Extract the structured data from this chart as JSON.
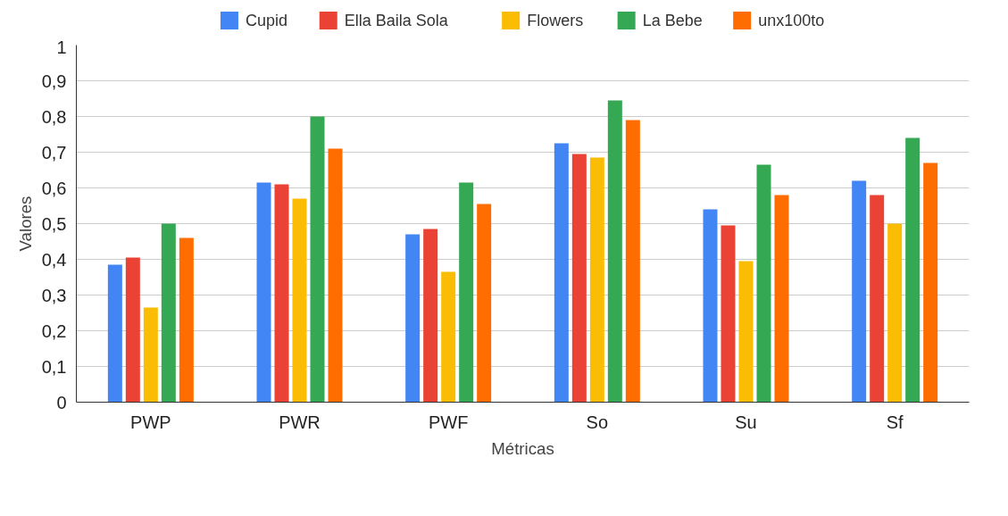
{
  "chart_data": {
    "type": "bar",
    "xlabel": "Métricas",
    "ylabel": "Valores",
    "categories": [
      "PWP",
      "PWR",
      "PWF",
      "So",
      "Su",
      "Sf"
    ],
    "series": [
      {
        "name": "Cupid",
        "color": "#4285f4",
        "values": [
          0.385,
          0.615,
          0.47,
          0.725,
          0.54,
          0.62
        ]
      },
      {
        "name": "Ella Baila Sola",
        "color": "#ea4335",
        "values": [
          0.405,
          0.61,
          0.485,
          0.695,
          0.495,
          0.58
        ]
      },
      {
        "name": "Flowers",
        "color": "#fbbc04",
        "values": [
          0.265,
          0.57,
          0.365,
          0.685,
          0.395,
          0.5
        ]
      },
      {
        "name": "La Bebe",
        "color": "#34a853",
        "values": [
          0.5,
          0.8,
          0.615,
          0.845,
          0.665,
          0.74
        ]
      },
      {
        "name": "unx100to",
        "color": "#ff6d01",
        "values": [
          0.46,
          0.71,
          0.555,
          0.79,
          0.58,
          0.67
        ]
      }
    ],
    "ylim": [
      0,
      1
    ],
    "yticks": [
      0,
      {
        "value": 0.1,
        "label": "0,1"
      },
      {
        "value": 0.2,
        "label": "0,2"
      },
      {
        "value": 0.3,
        "label": "0,3"
      },
      {
        "value": 0.4,
        "label": "0,4"
      },
      {
        "value": 0.5,
        "label": "0,5"
      },
      {
        "value": 0.6,
        "label": "0,6"
      },
      {
        "value": 0.7,
        "label": "0,7"
      },
      {
        "value": 0.8,
        "label": "0,8"
      },
      {
        "value": 0.9,
        "label": "0,9"
      },
      1
    ],
    "grid": "y",
    "legend": "top"
  }
}
